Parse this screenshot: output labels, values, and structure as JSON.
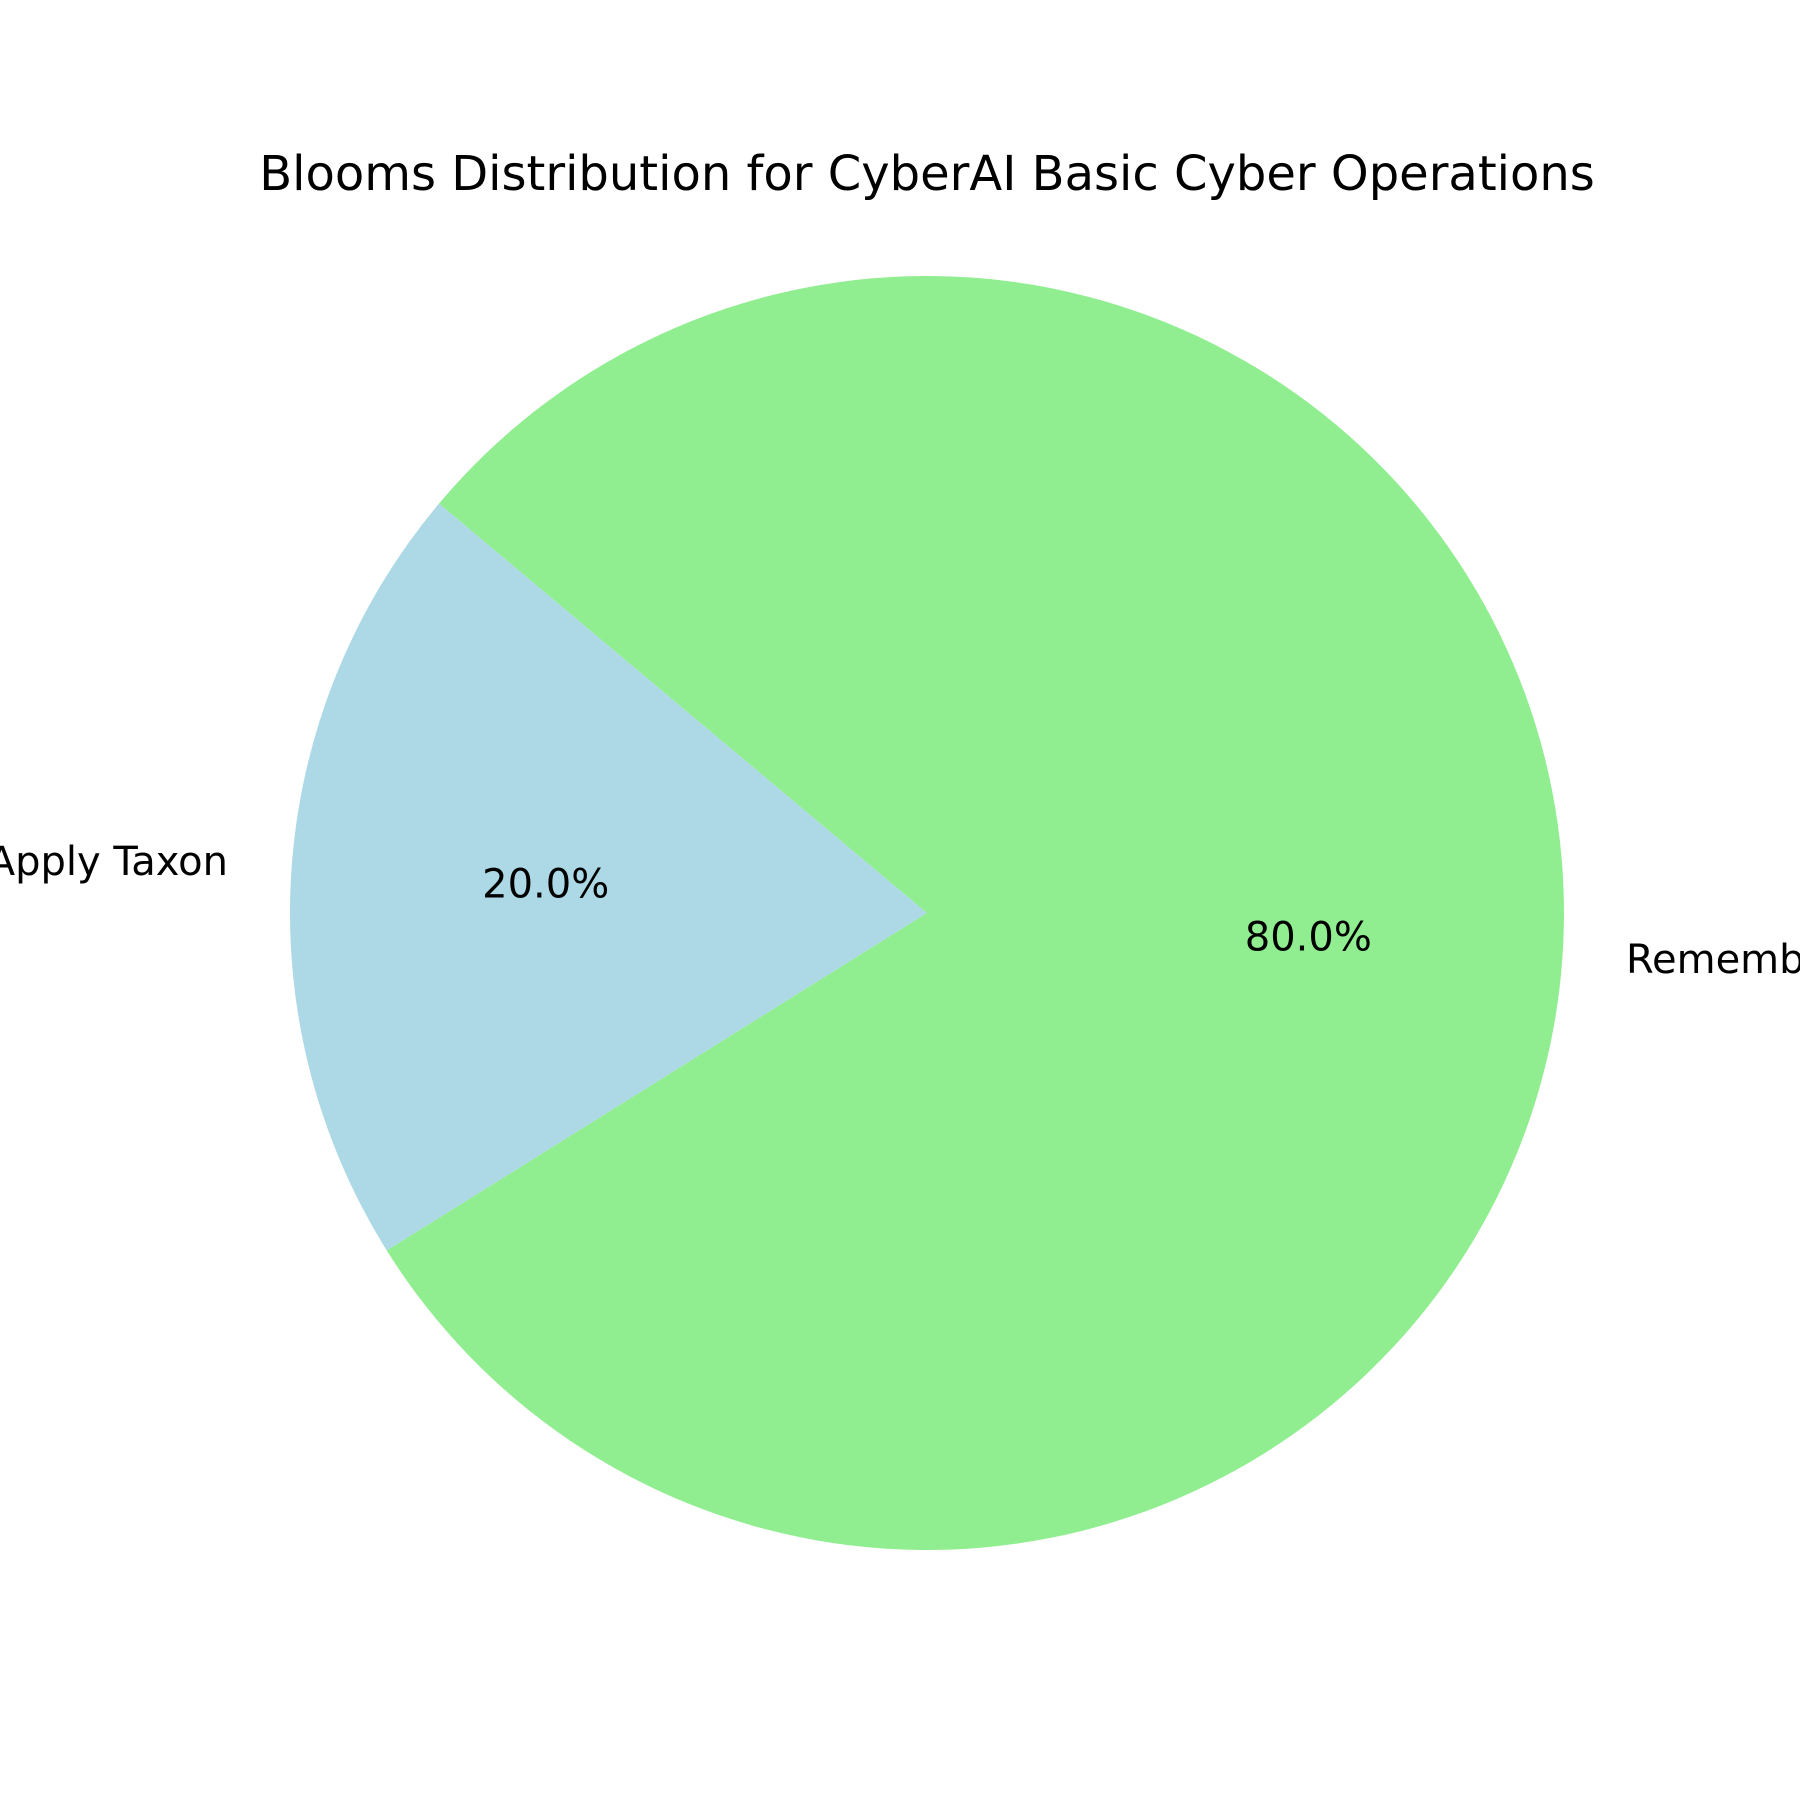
{
  "chart_data": {
    "type": "pie",
    "title": "Blooms Distribution for CyberAI Basic Cyber Operations",
    "slices": [
      {
        "label": "Apply Taxon",
        "value": 20.0,
        "pct_label": "20.0%",
        "color": "#add8e6"
      },
      {
        "label": "Remember Taxon",
        "value": 80.0,
        "pct_label": "80.0%",
        "color": "#90ee90"
      }
    ],
    "start_angle_deg": 140,
    "direction": "counterclockwise",
    "legend": "none"
  }
}
